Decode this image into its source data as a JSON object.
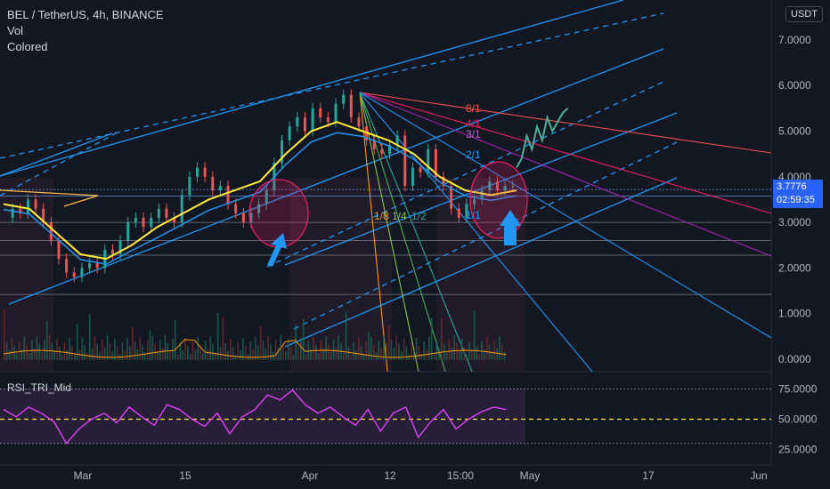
{
  "header": {
    "symbol_line": "BEL / TetherUS, 4h, BINANCE",
    "vol_label": "Vol",
    "colored_label": "Colored",
    "currency_button": "USDT",
    "indicator_title": "RSI_TRI_Mid"
  },
  "price_tag": {
    "price": "3.7776",
    "countdown": "02:59:35"
  },
  "fib_labels": {
    "r1": "8/1",
    "r2": "4/1",
    "r3": "3/1",
    "r4": "2/1",
    "r5": "1/1",
    "bottom_a": "1/8",
    "bottom_b": "1/4",
    "bottom_c": "1/2"
  },
  "colors": {
    "background": "#131722",
    "pitchfork_blue": "#2196f3",
    "ma_yellow": "#ffeb3b",
    "candle_up": "#26a69a",
    "candle_down": "#ef5350",
    "rsi_line": "#e040fb",
    "annotation_circle": "#e91e63",
    "arrow_blue": "#2196f3"
  },
  "chart_data": [
    {
      "type": "line",
      "title": "BEL / TetherUS, 4h, BINANCE",
      "x_tick_labels": [
        "Mar",
        "15",
        "Apr",
        "12",
        "15:00",
        "May",
        "17",
        "Jun"
      ],
      "y_tick_labels": [
        "7.0000",
        "6.0000",
        "5.0000",
        "4.0000",
        "3.0000",
        "2.0000",
        "1.0000",
        "0.0000"
      ],
      "ylim": [
        -0.4,
        7.7
      ],
      "y_scale": "linear",
      "series": [
        {
          "kind": "candles_close",
          "x": [
            0,
            3,
            6,
            9,
            12,
            15,
            18,
            21,
            24,
            27,
            30,
            33,
            36,
            39,
            42,
            45,
            48,
            51,
            54,
            57,
            60,
            63,
            66,
            69,
            72,
            75,
            78,
            81,
            84,
            87,
            90,
            93,
            96,
            99,
            102,
            105,
            108,
            111,
            114,
            117,
            120,
            123,
            126,
            129,
            132,
            135,
            138,
            141,
            144,
            147,
            150,
            153,
            156,
            159,
            162,
            165,
            168,
            171,
            174,
            177,
            180,
            183,
            186,
            189,
            192,
            195,
            198
          ],
          "values": [
            3.1,
            3.3,
            3.2,
            3.5,
            3.3,
            3.0,
            2.6,
            2.2,
            1.9,
            1.8,
            2.0,
            2.1,
            2.0,
            2.4,
            2.3,
            2.6,
            3.0,
            3.1,
            2.9,
            3.1,
            3.3,
            3.1,
            3.0,
            3.6,
            4.0,
            4.2,
            4.0,
            3.7,
            3.8,
            3.4,
            3.2,
            3.0,
            3.2,
            3.4,
            3.7,
            4.3,
            4.8,
            5.1,
            5.3,
            5.0,
            5.5,
            5.3,
            5.2,
            5.6,
            5.8,
            5.3,
            5.1,
            4.8,
            4.6,
            4.5,
            4.7,
            4.9,
            3.8,
            4.2,
            4.1,
            4.6,
            4.0,
            3.8,
            3.3,
            3.1,
            3.4,
            3.5,
            3.7,
            3.9,
            3.7,
            3.8,
            3.8
          ]
        },
        {
          "kind": "projection",
          "x": [
            200,
            202,
            204,
            206,
            208,
            210,
            212,
            214,
            216,
            218,
            220
          ],
          "values": [
            4.2,
            4.4,
            4.9,
            4.6,
            5.1,
            4.8,
            5.3,
            5.0,
            5.2,
            5.4,
            5.5
          ]
        },
        {
          "kind": "moving_average",
          "x": [
            0,
            10,
            20,
            30,
            40,
            50,
            60,
            70,
            80,
            90,
            100,
            110,
            120,
            130,
            140,
            150,
            160,
            170,
            180,
            190,
            200
          ],
          "values": [
            3.4,
            3.3,
            2.8,
            2.3,
            2.2,
            2.5,
            2.9,
            3.2,
            3.5,
            3.7,
            3.9,
            4.5,
            5.0,
            5.2,
            5.0,
            4.8,
            4.5,
            4.0,
            3.7,
            3.6,
            3.7
          ]
        }
      ],
      "horizontal_levels": [
        3.72,
        3.58,
        3.0,
        2.6,
        2.28,
        1.42
      ],
      "annotations": [
        "circle-left",
        "circle-right",
        "arrow-left",
        "arrow-right",
        "pitchfork",
        "speed-fan"
      ]
    },
    {
      "type": "bar",
      "title": "Vol",
      "note": "volume histogram overlaid at bottom of price pane"
    },
    {
      "type": "line",
      "title": "RSI_TRI_Mid",
      "y_tick_labels": [
        "75.0000",
        "50.0000",
        "25.0000"
      ],
      "ylim": [
        18,
        82
      ],
      "levels": [
        75,
        50,
        30
      ],
      "series": [
        {
          "name": "RSI_TRI_Mid",
          "x": [
            0,
            5,
            10,
            15,
            20,
            25,
            30,
            35,
            40,
            45,
            50,
            55,
            60,
            65,
            70,
            75,
            80,
            85,
            90,
            95,
            100,
            105,
            110,
            115,
            120,
            125,
            130,
            135,
            140,
            145,
            150,
            155,
            160,
            165,
            170,
            175,
            180,
            185,
            190,
            195,
            200
          ],
          "values": [
            58,
            52,
            60,
            55,
            48,
            30,
            42,
            50,
            55,
            47,
            60,
            52,
            45,
            62,
            58,
            50,
            44,
            55,
            38,
            52,
            58,
            70,
            66,
            74,
            62,
            55,
            60,
            52,
            45,
            58,
            40,
            55,
            60,
            35,
            48,
            58,
            42,
            50,
            56,
            60,
            58
          ]
        }
      ]
    }
  ]
}
